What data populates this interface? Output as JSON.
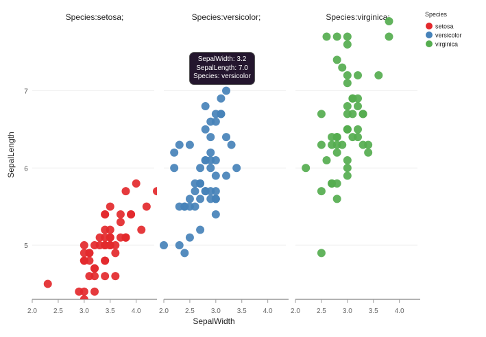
{
  "chart_data": {
    "type": "scatter",
    "facet_by": "Species",
    "xlabel": "SepalWidth",
    "ylabel": "SepalLength",
    "xlim": [
      2.0,
      4.4
    ],
    "ylim": [
      4.3,
      7.9
    ],
    "xticks": [
      "2.0",
      "2.5",
      "3.0",
      "3.5",
      "4.0"
    ],
    "yticks": [
      "5",
      "6",
      "7"
    ],
    "grid": true,
    "legend": {
      "title": "Species",
      "placement": "top-right"
    },
    "panels": [
      {
        "title": "Species:setosa;",
        "name": "setosa",
        "color": "#e3292d",
        "points": [
          [
            3.5,
            5.1
          ],
          [
            3.0,
            4.9
          ],
          [
            3.2,
            4.7
          ],
          [
            3.1,
            4.6
          ],
          [
            3.6,
            5.0
          ],
          [
            3.9,
            5.4
          ],
          [
            3.4,
            4.6
          ],
          [
            3.4,
            5.0
          ],
          [
            2.9,
            4.4
          ],
          [
            3.1,
            4.9
          ],
          [
            3.7,
            5.4
          ],
          [
            3.4,
            4.8
          ],
          [
            3.0,
            4.8
          ],
          [
            3.0,
            4.3
          ],
          [
            4.0,
            5.8
          ],
          [
            4.4,
            5.7
          ],
          [
            3.9,
            5.4
          ],
          [
            3.5,
            5.1
          ],
          [
            3.8,
            5.7
          ],
          [
            3.8,
            5.1
          ],
          [
            3.4,
            5.4
          ],
          [
            3.7,
            5.1
          ],
          [
            3.6,
            4.6
          ],
          [
            3.3,
            5.1
          ],
          [
            3.4,
            4.8
          ],
          [
            3.0,
            5.0
          ],
          [
            3.4,
            5.0
          ],
          [
            3.5,
            5.2
          ],
          [
            3.4,
            5.2
          ],
          [
            3.2,
            4.7
          ],
          [
            3.1,
            4.8
          ],
          [
            3.4,
            5.4
          ],
          [
            4.1,
            5.2
          ],
          [
            4.2,
            5.5
          ],
          [
            3.1,
            4.9
          ],
          [
            3.2,
            5.0
          ],
          [
            3.5,
            5.5
          ],
          [
            3.6,
            4.9
          ],
          [
            3.0,
            4.4
          ],
          [
            3.4,
            5.1
          ],
          [
            3.5,
            5.0
          ],
          [
            2.3,
            4.5
          ],
          [
            3.2,
            4.4
          ],
          [
            3.5,
            5.0
          ],
          [
            3.8,
            5.1
          ],
          [
            3.0,
            4.8
          ],
          [
            3.8,
            5.1
          ],
          [
            3.2,
            4.6
          ],
          [
            3.7,
            5.3
          ],
          [
            3.3,
            5.0
          ]
        ]
      },
      {
        "title": "Species:versicolor;",
        "name": "versicolor",
        "color": "#4682b9",
        "points": [
          [
            3.2,
            7.0
          ],
          [
            3.2,
            6.4
          ],
          [
            3.1,
            6.9
          ],
          [
            2.3,
            5.5
          ],
          [
            2.8,
            6.5
          ],
          [
            2.8,
            5.7
          ],
          [
            3.3,
            6.3
          ],
          [
            2.4,
            4.9
          ],
          [
            2.9,
            6.6
          ],
          [
            2.7,
            5.2
          ],
          [
            2.0,
            5.0
          ],
          [
            3.0,
            5.9
          ],
          [
            2.2,
            6.0
          ],
          [
            2.9,
            6.1
          ],
          [
            2.9,
            5.6
          ],
          [
            3.1,
            6.7
          ],
          [
            3.0,
            5.6
          ],
          [
            2.7,
            5.8
          ],
          [
            2.2,
            6.2
          ],
          [
            2.5,
            5.6
          ],
          [
            3.2,
            5.9
          ],
          [
            2.8,
            6.1
          ],
          [
            2.5,
            6.3
          ],
          [
            2.8,
            6.1
          ],
          [
            2.9,
            6.4
          ],
          [
            3.0,
            6.6
          ],
          [
            2.8,
            6.8
          ],
          [
            3.0,
            6.7
          ],
          [
            2.9,
            6.0
          ],
          [
            2.6,
            5.7
          ],
          [
            2.4,
            5.5
          ],
          [
            2.4,
            5.5
          ],
          [
            2.7,
            5.8
          ],
          [
            2.7,
            6.0
          ],
          [
            3.0,
            5.4
          ],
          [
            3.4,
            6.0
          ],
          [
            3.1,
            6.7
          ],
          [
            2.3,
            6.3
          ],
          [
            3.0,
            5.6
          ],
          [
            2.5,
            5.5
          ],
          [
            2.6,
            5.5
          ],
          [
            3.0,
            6.1
          ],
          [
            2.6,
            5.8
          ],
          [
            2.3,
            5.0
          ],
          [
            2.7,
            5.6
          ],
          [
            3.0,
            5.7
          ],
          [
            2.9,
            5.7
          ],
          [
            2.9,
            6.2
          ],
          [
            2.5,
            5.1
          ],
          [
            2.8,
            5.7
          ]
        ]
      },
      {
        "title": "Species:virginica;",
        "name": "virginica",
        "color": "#55ad4f",
        "points": [
          [
            3.3,
            6.3
          ],
          [
            2.7,
            5.8
          ],
          [
            3.0,
            7.1
          ],
          [
            2.9,
            6.3
          ],
          [
            3.0,
            6.5
          ],
          [
            3.0,
            7.6
          ],
          [
            2.5,
            4.9
          ],
          [
            2.9,
            7.3
          ],
          [
            2.5,
            6.7
          ],
          [
            3.6,
            7.2
          ],
          [
            3.2,
            6.5
          ],
          [
            2.7,
            6.4
          ],
          [
            3.0,
            6.8
          ],
          [
            2.5,
            5.7
          ],
          [
            2.8,
            5.8
          ],
          [
            3.2,
            6.4
          ],
          [
            3.0,
            6.5
          ],
          [
            3.8,
            7.7
          ],
          [
            2.6,
            7.7
          ],
          [
            2.2,
            6.0
          ],
          [
            3.2,
            6.9
          ],
          [
            2.8,
            5.6
          ],
          [
            2.8,
            7.7
          ],
          [
            2.7,
            6.3
          ],
          [
            3.3,
            6.7
          ],
          [
            3.2,
            7.2
          ],
          [
            2.8,
            6.2
          ],
          [
            3.0,
            6.1
          ],
          [
            2.8,
            6.4
          ],
          [
            3.0,
            7.2
          ],
          [
            2.8,
            7.4
          ],
          [
            3.8,
            7.9
          ],
          [
            2.8,
            6.4
          ],
          [
            2.8,
            6.3
          ],
          [
            2.6,
            6.1
          ],
          [
            3.0,
            7.7
          ],
          [
            3.4,
            6.3
          ],
          [
            3.1,
            6.4
          ],
          [
            3.0,
            6.0
          ],
          [
            3.1,
            6.9
          ],
          [
            3.1,
            6.7
          ],
          [
            3.1,
            6.9
          ],
          [
            2.7,
            5.8
          ],
          [
            3.2,
            6.8
          ],
          [
            3.3,
            6.7
          ],
          [
            3.0,
            6.7
          ],
          [
            2.5,
            6.3
          ],
          [
            3.0,
            6.5
          ],
          [
            3.4,
            6.2
          ],
          [
            3.0,
            5.9
          ]
        ]
      }
    ]
  },
  "tooltip": {
    "line1": "SepalWidth: 3.2",
    "line2": "SepalLength: 7.0",
    "line3": "Species: versicolor"
  }
}
